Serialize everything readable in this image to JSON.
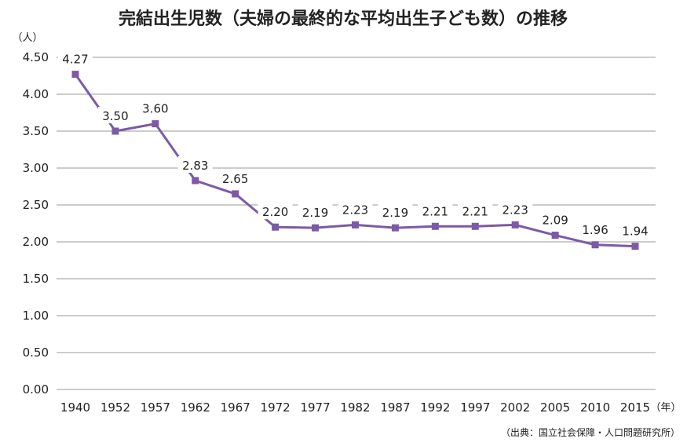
{
  "chart_data": {
    "type": "line",
    "title": "完結出生児数（夫婦の最終的な平均出生子ども数）の推移",
    "y_unit_label": "（人）",
    "x_unit_label": "（年）",
    "source_note": "（出典：国立社会保障・人口問題研究所）",
    "ylim": [
      0,
      4.5
    ],
    "y_ticks": [
      "0.00",
      "0.50",
      "1.00",
      "1.50",
      "2.00",
      "2.50",
      "3.00",
      "3.50",
      "4.00",
      "4.50"
    ],
    "x": [
      "1940",
      "1952",
      "1957",
      "1962",
      "1967",
      "1972",
      "1977",
      "1982",
      "1987",
      "1992",
      "1997",
      "2002",
      "2005",
      "2010",
      "2015"
    ],
    "values": [
      4.27,
      3.5,
      3.6,
      2.83,
      2.65,
      2.2,
      2.19,
      2.23,
      2.19,
      2.21,
      2.21,
      2.23,
      2.09,
      1.96,
      1.94
    ],
    "value_labels": [
      "4.27",
      "3.50",
      "3.60",
      "2.83",
      "2.65",
      "2.20",
      "2.19",
      "2.23",
      "2.19",
      "2.21",
      "2.21",
      "2.23",
      "2.09",
      "1.96",
      "1.94"
    ],
    "grid": true,
    "legend": "none",
    "line_color": "#7c5aa6",
    "grid_color": "#999999"
  }
}
